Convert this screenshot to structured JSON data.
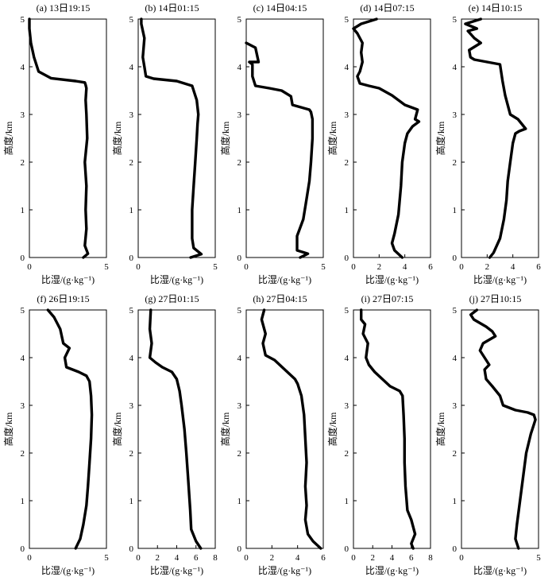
{
  "chart_data": [
    {
      "type": "line",
      "title": "(a) 13日19:15",
      "xlabel": "比湿/(g·kg⁻¹)",
      "ylabel": "高度/km",
      "xlim": [
        0,
        5
      ],
      "ylim": [
        0,
        5
      ],
      "xticks": [
        "0",
        "5"
      ],
      "yticks": [
        "0",
        "1",
        "2",
        "3",
        "4",
        "5"
      ],
      "series": [
        {
          "x": [
            3.5,
            3.8,
            3.6,
            3.7,
            3.65,
            3.7,
            3.6,
            3.75,
            3.7,
            3.65,
            3.7,
            3.65,
            3.6,
            3.0,
            1.4,
            0.6,
            0.3,
            0.1,
            0.0,
            0.0
          ],
          "y": [
            0,
            0.08,
            0.25,
            0.6,
            1.0,
            1.5,
            2.0,
            2.5,
            3.0,
            3.3,
            3.55,
            3.62,
            3.67,
            3.7,
            3.76,
            3.9,
            4.2,
            4.5,
            4.8,
            5.0
          ]
        }
      ]
    },
    {
      "type": "line",
      "title": "(b) 14日01:15",
      "xlabel": "比湿/(g·kg⁻¹)",
      "ylabel": "高度/km",
      "xlim": [
        0,
        5
      ],
      "ylim": [
        0,
        5
      ],
      "xticks": [
        "0",
        "5"
      ],
      "yticks": [
        "0",
        "1",
        "2",
        "3",
        "4",
        "5"
      ],
      "series": [
        {
          "x": [
            3.4,
            4.1,
            3.6,
            3.5,
            3.5,
            3.6,
            3.7,
            3.8,
            3.85,
            3.9,
            3.8,
            3.5,
            2.5,
            1.0,
            0.5,
            0.4,
            0.3,
            0.4,
            0.2,
            0.2
          ],
          "y": [
            0,
            0.07,
            0.2,
            0.4,
            1.0,
            1.5,
            2.0,
            2.5,
            2.8,
            3.0,
            3.3,
            3.6,
            3.7,
            3.75,
            3.8,
            4.0,
            4.2,
            4.6,
            4.9,
            5.0
          ]
        }
      ]
    },
    {
      "type": "line",
      "title": "(c) 14日04:15",
      "xlabel": "比湿/(g·kg⁻¹)",
      "ylabel": "高度/km",
      "xlim": [
        0,
        5
      ],
      "ylim": [
        0,
        5
      ],
      "xticks": [
        "0",
        "5"
      ],
      "yticks": [
        "0",
        "1",
        "2",
        "3",
        "4",
        "5"
      ],
      "series": [
        {
          "x": [
            3.5,
            4.0,
            3.3,
            3.3,
            3.7,
            3.9,
            4.1,
            4.2,
            4.3,
            4.3,
            4.2,
            4.1,
            3.0,
            2.9,
            2.3,
            1.5,
            0.6,
            0.4,
            0.4,
            0.2,
            0.8,
            0.6,
            0.0
          ],
          "y": [
            0,
            0.08,
            0.15,
            0.45,
            0.8,
            1.2,
            1.6,
            2.0,
            2.5,
            2.9,
            3.05,
            3.1,
            3.2,
            3.38,
            3.5,
            3.55,
            3.6,
            3.8,
            4.05,
            4.1,
            4.1,
            4.4,
            4.5
          ]
        }
      ]
    },
    {
      "type": "line",
      "title": "(d) 14日07:15",
      "xlabel": "比湿/(g·kg⁻¹)",
      "ylabel": "高度/km",
      "xlim": [
        0,
        6
      ],
      "ylim": [
        0,
        5
      ],
      "xticks": [
        "0",
        "2",
        "4",
        "6"
      ],
      "yticks": [
        "0",
        "1",
        "2",
        "3",
        "4",
        "5"
      ],
      "series": [
        {
          "x": [
            3.8,
            3.2,
            3.0,
            3.2,
            3.5,
            3.7,
            3.8,
            4.0,
            4.2,
            4.6,
            5.1,
            4.8,
            5.0,
            4.5,
            4.0,
            3.0,
            2.0,
            1.2,
            0.5,
            0.3,
            0.5,
            0.7,
            0.6,
            0.7,
            0.3,
            0.0,
            0.6,
            1.8
          ],
          "y": [
            0,
            0.15,
            0.3,
            0.5,
            0.9,
            1.5,
            2.0,
            2.4,
            2.6,
            2.75,
            2.85,
            2.9,
            3.1,
            3.15,
            3.2,
            3.4,
            3.55,
            3.6,
            3.65,
            3.8,
            3.9,
            4.1,
            4.3,
            4.5,
            4.7,
            4.8,
            4.9,
            5.0
          ]
        }
      ]
    },
    {
      "type": "line",
      "title": "(e) 14日10:15",
      "xlabel": "比湿/(g·kg⁻¹)",
      "ylabel": "高度/km",
      "xlim": [
        0,
        6
      ],
      "ylim": [
        0,
        5
      ],
      "xticks": [
        "0",
        "2",
        "4",
        "6"
      ],
      "yticks": [
        "0",
        "1",
        "2",
        "3",
        "4",
        "5"
      ],
      "series": [
        {
          "x": [
            2.2,
            2.5,
            3.0,
            3.3,
            3.5,
            3.6,
            3.8,
            4.0,
            4.2,
            4.5,
            5.0,
            4.4,
            3.8,
            3.6,
            3.4,
            3.2,
            3.0,
            2.0,
            1.0,
            0.7,
            0.6,
            1.5,
            1.0,
            0.5,
            1.2,
            0.3,
            1.5
          ],
          "y": [
            0,
            0.1,
            0.4,
            0.8,
            1.2,
            1.6,
            2.0,
            2.4,
            2.6,
            2.65,
            2.7,
            2.9,
            3.0,
            3.2,
            3.4,
            3.7,
            4.05,
            4.1,
            4.15,
            4.2,
            4.35,
            4.5,
            4.6,
            4.75,
            4.8,
            4.9,
            5.0
          ]
        }
      ]
    },
    {
      "type": "line",
      "title": "(f) 26日19:15",
      "xlabel": "比湿/(g·kg⁻¹)",
      "ylabel": "高度/km",
      "xlim": [
        0,
        5
      ],
      "ylim": [
        0,
        5
      ],
      "xticks": [
        "0",
        "5"
      ],
      "yticks": [
        "0",
        "1",
        "2",
        "3",
        "4",
        "5"
      ],
      "series": [
        {
          "x": [
            3.0,
            3.3,
            3.5,
            3.7,
            3.8,
            3.9,
            4.0,
            4.05,
            4.0,
            3.9,
            3.7,
            3.2,
            2.4,
            2.3,
            2.6,
            2.2,
            2.0,
            1.6,
            1.2
          ],
          "y": [
            0,
            0.2,
            0.5,
            0.9,
            1.3,
            1.8,
            2.3,
            2.8,
            3.2,
            3.5,
            3.62,
            3.7,
            3.8,
            4.0,
            4.2,
            4.3,
            4.6,
            4.85,
            5.0
          ]
        }
      ]
    },
    {
      "type": "line",
      "title": "(g) 27日01:15",
      "xlabel": "比湿/(g·kg⁻¹)",
      "ylabel": "高度/km",
      "xlim": [
        0,
        8
      ],
      "ylim": [
        0,
        5
      ],
      "xticks": [
        "0",
        "2",
        "4",
        "6",
        "8"
      ],
      "yticks": [
        "0",
        "1",
        "2",
        "3",
        "4",
        "5"
      ],
      "series": [
        {
          "x": [
            6.5,
            6.0,
            5.5,
            5.4,
            5.2,
            5.0,
            4.8,
            4.5,
            4.3,
            4.0,
            3.5,
            2.5,
            1.8,
            1.2,
            1.4,
            1.2,
            1.3
          ],
          "y": [
            0,
            0.15,
            0.4,
            0.8,
            1.4,
            2.0,
            2.5,
            3.0,
            3.3,
            3.55,
            3.7,
            3.8,
            3.9,
            4.0,
            4.3,
            4.6,
            5.0
          ]
        }
      ]
    },
    {
      "type": "line",
      "title": "(h) 27日04:15",
      "xlabel": "比湿/(g·kg⁻¹)",
      "ylabel": "高度/km",
      "xlim": [
        0,
        6
      ],
      "ylim": [
        0,
        5
      ],
      "xticks": [
        "0",
        "2",
        "4",
        "6"
      ],
      "yticks": [
        "0",
        "1",
        "2",
        "3",
        "4",
        "5"
      ],
      "series": [
        {
          "x": [
            5.8,
            5.2,
            4.8,
            4.6,
            4.7,
            4.6,
            4.7,
            4.6,
            4.5,
            4.3,
            4.0,
            3.8,
            3.0,
            2.2,
            1.5,
            1.3,
            1.5,
            1.2,
            1.4
          ],
          "y": [
            0,
            0.15,
            0.3,
            0.6,
            0.9,
            1.3,
            1.8,
            2.3,
            2.8,
            3.2,
            3.45,
            3.55,
            3.75,
            3.95,
            4.05,
            4.3,
            4.5,
            4.8,
            5.0
          ]
        }
      ]
    },
    {
      "type": "line",
      "title": "(i) 27日07:15",
      "xlabel": "比湿/(g·kg⁻¹)",
      "ylabel": "高度/km",
      "xlim": [
        0,
        8
      ],
      "ylim": [
        0,
        5
      ],
      "xticks": [
        "0",
        "2",
        "4",
        "6",
        "8"
      ],
      "yticks": [
        "0",
        "1",
        "2",
        "3",
        "4",
        "5"
      ],
      "series": [
        {
          "x": [
            6.2,
            6.0,
            6.4,
            6.0,
            5.6,
            5.4,
            5.3,
            5.3,
            5.2,
            5.1,
            4.8,
            3.8,
            3.0,
            2.2,
            1.6,
            1.3,
            1.5,
            1.0,
            1.2,
            0.8,
            0.8
          ],
          "y": [
            0,
            0.1,
            0.3,
            0.6,
            0.8,
            1.3,
            1.8,
            2.3,
            2.8,
            3.2,
            3.3,
            3.4,
            3.55,
            3.7,
            3.85,
            4.0,
            4.3,
            4.5,
            4.7,
            4.8,
            5.0
          ]
        }
      ]
    },
    {
      "type": "line",
      "title": "(j) 27日10:15",
      "xlabel": "比湿/(g·kg⁻¹)",
      "ylabel": "高度/km",
      "xlim": [
        0,
        5
      ],
      "ylim": [
        0,
        5
      ],
      "xticks": [
        "0",
        "5"
      ],
      "yticks": [
        "0",
        "1",
        "2",
        "3",
        "4",
        "5"
      ],
      "series": [
        {
          "x": [
            3.7,
            3.5,
            3.6,
            3.8,
            4.0,
            4.2,
            4.5,
            4.7,
            4.8,
            4.7,
            4.3,
            3.5,
            2.7,
            2.5,
            2.0,
            1.6,
            1.5,
            1.8,
            1.5,
            1.2,
            1.4,
            2.2,
            2.0,
            1.6,
            0.8,
            0.6,
            1.0
          ],
          "y": [
            0,
            0.2,
            0.5,
            1.0,
            1.5,
            2.0,
            2.4,
            2.6,
            2.7,
            2.8,
            2.85,
            2.9,
            3.0,
            3.2,
            3.4,
            3.55,
            3.75,
            3.85,
            4.0,
            4.15,
            4.3,
            4.45,
            4.55,
            4.65,
            4.8,
            4.9,
            5.0
          ]
        }
      ]
    }
  ]
}
